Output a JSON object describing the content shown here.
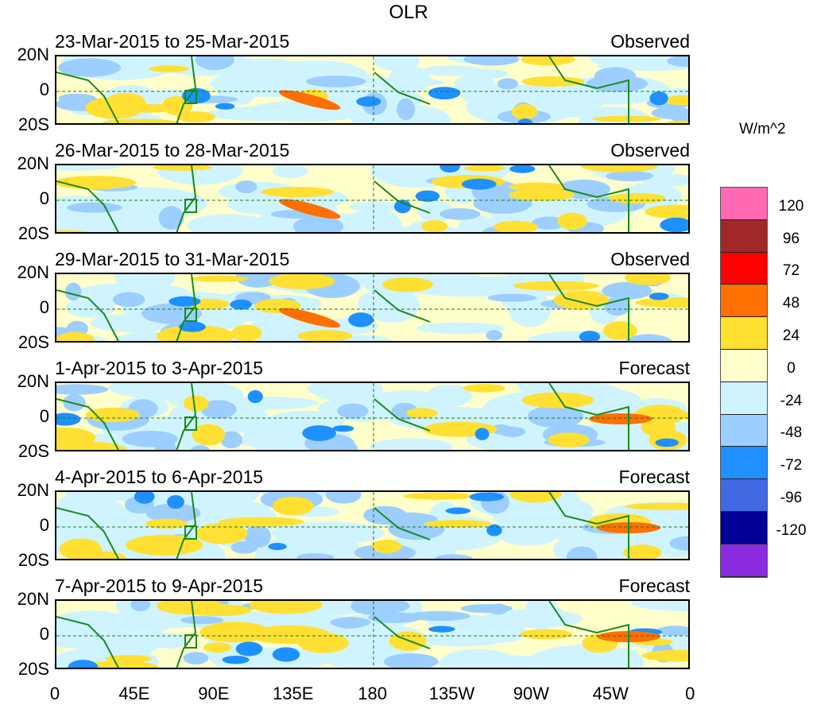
{
  "title": "OLR",
  "units": "W/m^2",
  "panels": [
    {
      "date_range": "23-Mar-2015 to 25-Mar-2015",
      "type": "Observed"
    },
    {
      "date_range": "26-Mar-2015 to 28-Mar-2015",
      "type": "Observed"
    },
    {
      "date_range": "29-Mar-2015 to 31-Mar-2015",
      "type": "Observed"
    },
    {
      "date_range": "1-Apr-2015 to 3-Apr-2015",
      "type": "Forecast"
    },
    {
      "date_range": "4-Apr-2015 to 6-Apr-2015",
      "type": "Forecast"
    },
    {
      "date_range": "7-Apr-2015 to 9-Apr-2015",
      "type": "Forecast"
    }
  ],
  "y_ticks": [
    "20N",
    "0",
    "20S"
  ],
  "x_ticks": [
    "0",
    "45E",
    "90E",
    "135E",
    "180",
    "135W",
    "90W",
    "45W",
    "0"
  ],
  "colorbar": {
    "colors": [
      "#ff69b4",
      "#a02828",
      "#ff0000",
      "#ff7000",
      "#ffe033",
      "#ffffcc",
      "#d0f4ff",
      "#9ccfff",
      "#1e90ff",
      "#4169e1",
      "#000096",
      "#8a2be2"
    ],
    "labels": [
      "120",
      "96",
      "72",
      "48",
      "24",
      "0",
      "-24",
      "-48",
      "-72",
      "-96",
      "-120"
    ]
  }
}
